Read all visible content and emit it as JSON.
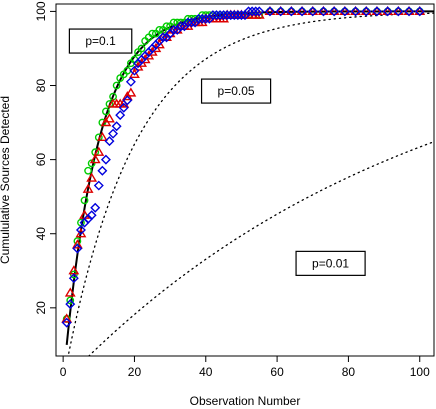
{
  "chart_data": {
    "type": "scatter",
    "xlabel": "Observation Number",
    "ylabel": "Cumululative Sources Detected",
    "xlim": [
      -2,
      104
    ],
    "ylim": [
      7,
      102
    ],
    "x_ticks": [
      0,
      20,
      40,
      60,
      80,
      100
    ],
    "y_ticks": [
      20,
      40,
      60,
      80,
      100
    ],
    "grid": false,
    "legend": "none",
    "annotations": [
      {
        "text": "p=0.1",
        "x": 10.5,
        "y": 92
      },
      {
        "text": "p=0.05",
        "x": 48.5,
        "y": 78.5
      },
      {
        "text": "p=0.01",
        "x": 75,
        "y": 32
      }
    ],
    "series": [
      {
        "name": "p=0.1",
        "style": "solid",
        "color": "#000000",
        "total": 100,
        "p": 0.1,
        "x": [
          1,
          2,
          3,
          4,
          5,
          6,
          7,
          8,
          9,
          10,
          11,
          12,
          13,
          14,
          15,
          16,
          17,
          18,
          19,
          20,
          22,
          24,
          26,
          28,
          30,
          32,
          34,
          36,
          38,
          40,
          45,
          50,
          55,
          60,
          70,
          80,
          90,
          100
        ],
        "y": [
          10,
          19,
          27,
          34.4,
          41,
          46.9,
          52.2,
          57,
          61.3,
          65.1,
          68.6,
          71.8,
          74.6,
          77.1,
          79.4,
          81.5,
          83.3,
          85,
          86.5,
          87.8,
          90.2,
          92,
          93.6,
          94.8,
          95.8,
          96.6,
          97.2,
          97.8,
          98.2,
          98.5,
          99.1,
          99.5,
          99.7,
          99.8,
          99.9,
          100,
          100,
          100
        ]
      },
      {
        "name": "p=0.05",
        "style": "dotted",
        "color": "#000000",
        "total": 100,
        "p": 0.05,
        "x": [
          1,
          2,
          4,
          6,
          8,
          10,
          12,
          15,
          18,
          21,
          25,
          30,
          35,
          40,
          45,
          50,
          55,
          60,
          70,
          80,
          90,
          100
        ],
        "y": [
          5,
          9.8,
          18.5,
          26.5,
          33.7,
          40.1,
          46,
          53.7,
          60.3,
          65.9,
          72.3,
          78.5,
          83.4,
          87.1,
          90.1,
          92.3,
          94,
          95.4,
          97.2,
          98.3,
          99,
          99.4
        ]
      },
      {
        "name": "p=0.01",
        "style": "dotted",
        "color": "#000000",
        "total": 100,
        "p": 0.01,
        "x": [
          1,
          5,
          10,
          15,
          20,
          25,
          30,
          35,
          40,
          45,
          50,
          55,
          60,
          65,
          70,
          75,
          80,
          85,
          90,
          95,
          100
        ],
        "y": [
          1,
          4.9,
          9.6,
          14,
          18.2,
          22.2,
          26,
          29.7,
          33.1,
          36.4,
          39.5,
          42.4,
          45.3,
          48,
          50.5,
          52.9,
          55.2,
          57.4,
          59.5,
          61.5,
          63.4
        ]
      },
      {
        "name": "green circles",
        "marker": "circle",
        "color": "#00cc00",
        "x": [
          1,
          2,
          3,
          4,
          5,
          6,
          7,
          8,
          9,
          10,
          11,
          12,
          13,
          14,
          15,
          16,
          17,
          18,
          19,
          20,
          21,
          22,
          23,
          24,
          25,
          26,
          27,
          28,
          29,
          30,
          31,
          32,
          33,
          34,
          35,
          36,
          37,
          38,
          39,
          40,
          41,
          42,
          43,
          44,
          45,
          46,
          47,
          48,
          49,
          50,
          52,
          55,
          58,
          61,
          64,
          67,
          70,
          73,
          76,
          79,
          82,
          85,
          88,
          91,
          94,
          97,
          100
        ],
        "y": [
          17,
          22,
          29,
          38,
          43,
          49,
          57,
          59,
          62,
          66,
          70,
          73,
          75,
          77,
          80,
          82,
          83,
          84,
          86,
          87,
          89,
          90,
          92,
          93,
          94,
          94,
          95,
          95,
          96,
          96,
          97,
          97,
          97,
          97,
          98,
          98,
          98,
          98,
          99,
          99,
          99,
          99,
          99,
          99,
          99,
          99,
          99,
          99,
          99,
          99,
          99,
          99,
          100,
          100,
          100,
          100,
          100,
          100,
          100,
          100,
          100,
          100,
          100,
          100,
          100,
          100,
          100
        ]
      },
      {
        "name": "red triangles",
        "marker": "triangle",
        "color": "#dd0000",
        "x": [
          1,
          2,
          3,
          4,
          5,
          6,
          7,
          8,
          9,
          10,
          11,
          12,
          13,
          14,
          15,
          16,
          17,
          18,
          19,
          20,
          21,
          22,
          23,
          24,
          25,
          26,
          27,
          28,
          29,
          30,
          31,
          32,
          33,
          34,
          35,
          36,
          37,
          38,
          39,
          40,
          41,
          42,
          43,
          44,
          45,
          46,
          47,
          48,
          49,
          50,
          51,
          52,
          53,
          54,
          55,
          58,
          61,
          64,
          67,
          70,
          73,
          76,
          79,
          82,
          85,
          88,
          91,
          94,
          97,
          100
        ],
        "y": [
          17,
          24,
          30,
          37,
          40,
          45,
          52,
          55,
          60,
          62,
          66,
          70,
          71,
          75,
          75,
          75,
          75,
          77,
          78,
          83,
          85,
          86,
          87,
          88,
          89,
          90,
          91,
          93,
          93,
          94,
          95,
          95,
          96,
          96,
          96,
          97,
          97,
          97,
          97,
          98,
          98,
          98,
          98,
          98,
          98,
          99,
          99,
          99,
          99,
          99,
          99,
          99,
          99,
          99,
          99,
          100,
          100,
          100,
          100,
          100,
          100,
          100,
          100,
          100,
          100,
          100,
          100,
          100,
          100,
          100
        ]
      },
      {
        "name": "blue diamonds",
        "marker": "diamond",
        "color": "#0000dd",
        "x": [
          1,
          2,
          3,
          4,
          5,
          6,
          7,
          8,
          9,
          10,
          11,
          12,
          13,
          14,
          15,
          16,
          17,
          18,
          19,
          20,
          21,
          22,
          23,
          24,
          25,
          26,
          27,
          28,
          29,
          30,
          31,
          32,
          33,
          34,
          35,
          36,
          37,
          38,
          39,
          40,
          41,
          42,
          43,
          44,
          45,
          46,
          47,
          48,
          49,
          50,
          51,
          52,
          53,
          54,
          55,
          58,
          61,
          64,
          67,
          70,
          73,
          76,
          79,
          82,
          85,
          88,
          91,
          94,
          97,
          100
        ],
        "y": [
          16,
          21,
          28,
          36,
          41,
          43,
          44,
          45,
          47,
          53,
          57,
          60,
          65,
          67,
          69,
          72,
          74,
          76,
          81,
          84,
          86,
          87,
          88,
          89,
          90,
          91,
          92,
          93,
          93,
          94,
          95,
          95,
          96,
          96,
          97,
          97,
          97,
          98,
          98,
          98,
          98,
          99,
          99,
          99,
          99,
          99,
          99,
          99,
          99,
          99,
          99,
          100,
          100,
          100,
          100,
          100,
          100,
          100,
          100,
          100,
          100,
          100,
          100,
          100,
          100,
          100,
          100,
          100,
          100,
          100
        ]
      }
    ]
  }
}
